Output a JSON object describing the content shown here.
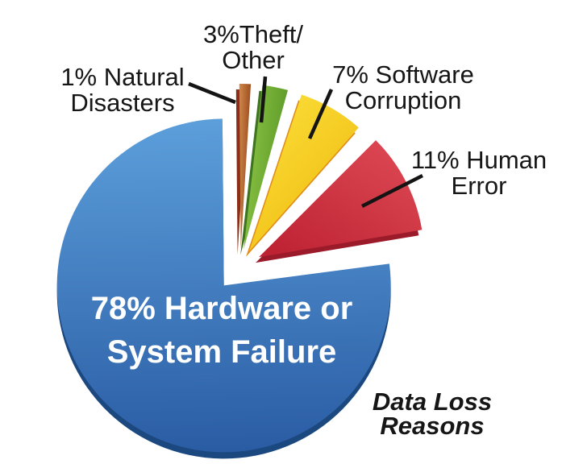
{
  "background": "#ffffff",
  "chart_data": {
    "type": "pie",
    "title": "Data Loss Reasons",
    "title_lines": [
      "Data Loss",
      "Reasons"
    ],
    "legend_position": "none",
    "categories": [
      "Natural Disasters",
      "Theft/Other",
      "Software Corruption",
      "Human Error",
      "Hardware or System Failure"
    ],
    "values": [
      1,
      3,
      7,
      11,
      78
    ],
    "slices": [
      {
        "label": "Natural Disasters",
        "pct": 1,
        "label_lines": [
          "1% Natural",
          "Disasters"
        ],
        "color_light": "#D0884A",
        "color_dark": "#9A4A1C",
        "color_side": "#8A2E18"
      },
      {
        "label": "Theft/Other",
        "pct": 3,
        "label_lines": [
          "3%Theft/",
          "Other"
        ],
        "color_light": "#90C848",
        "color_dark": "#5D9A28",
        "color_side": "#3F7520"
      },
      {
        "label": "Software Corruption",
        "pct": 7,
        "label_lines": [
          "7% Software",
          "Corruption"
        ],
        "color_light": "#FBE03A",
        "color_dark": "#EFB90E",
        "color_side": "#E18D18"
      },
      {
        "label": "Human Error",
        "pct": 11,
        "label_lines": [
          "11% Human",
          "Error"
        ],
        "color_light": "#DD4853",
        "color_dark": "#BE2334",
        "color_side": "#9C1B2A"
      },
      {
        "label": "Hardware or System Failure",
        "pct": 78,
        "label_lines": [
          "78% Hardware or",
          "System Failure"
        ],
        "color_light": "#5C9FDB",
        "color_dark": "#2A5CA4",
        "color_side": "#1C4880",
        "text_color": "#FFFFFF"
      }
    ]
  }
}
